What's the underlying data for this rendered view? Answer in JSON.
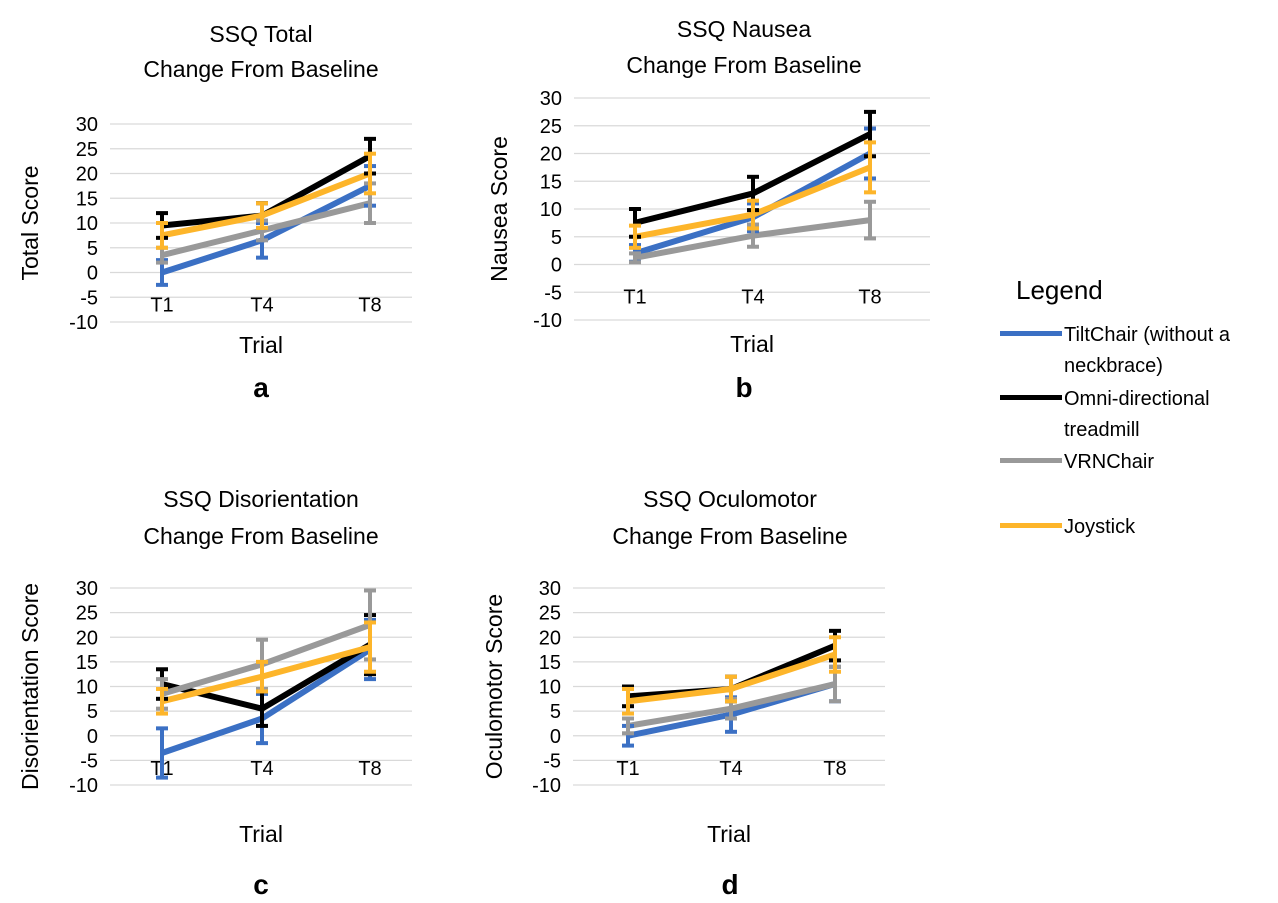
{
  "figure": {
    "series_colors": [
      "#3b70c4",
      "#000000",
      "#999999",
      "#fdb52a"
    ],
    "series_names": [
      "TiltChair (without a neckbrace)",
      "Omni-directional treadmill",
      "VRNChair",
      "Joystick"
    ]
  },
  "legend": {
    "title": "Legend",
    "items": [
      {
        "label": "TiltChair (without a neckbrace)",
        "color": "#3b70c4"
      },
      {
        "label": "Omni-directional treadmill",
        "color": "#000000"
      },
      {
        "label": "VRNChair",
        "color": "#999999"
      },
      {
        "label": "Joystick",
        "color": "#fdb52a"
      }
    ]
  },
  "chart_data": [
    {
      "type": "line",
      "panel": "a",
      "title": "SSQ Total\nChange From Baseline",
      "xlabel": "Trial",
      "ylabel": "Total Score",
      "categories": [
        "T1",
        "T4",
        "T8"
      ],
      "ylim": [
        -10,
        30
      ],
      "yticks": [
        -10,
        -5,
        0,
        5,
        10,
        15,
        20,
        25,
        30
      ],
      "grid": true,
      "series": [
        {
          "name": "TiltChair (without a neckbrace)",
          "values": [
            0,
            6.5,
            17.5
          ],
          "err_lo": [
            2.5,
            3.5,
            4
          ],
          "err_hi": [
            2.5,
            3.5,
            4
          ]
        },
        {
          "name": "Omni-directional treadmill",
          "values": [
            9.5,
            11.5,
            23.5
          ],
          "err_lo": [
            2.5,
            2.5,
            3.5
          ],
          "err_hi": [
            2.5,
            2.5,
            3.5
          ]
        },
        {
          "name": "VRNChair",
          "values": [
            3.5,
            8.5,
            14
          ],
          "err_lo": [
            1.5,
            2,
            4
          ],
          "err_hi": [
            1.5,
            2,
            4
          ]
        },
        {
          "name": "Joystick",
          "values": [
            7.5,
            11.5,
            20
          ],
          "err_lo": [
            2.5,
            2.5,
            4
          ],
          "err_hi": [
            2.5,
            2.5,
            4
          ]
        }
      ]
    },
    {
      "type": "line",
      "panel": "b",
      "title": "SSQ Nausea\nChange From Baseline",
      "xlabel": "Trial",
      "ylabel": "Nausea Score",
      "categories": [
        "T1",
        "T4",
        "T8"
      ],
      "ylim": [
        -10,
        30
      ],
      "yticks": [
        -10,
        -5,
        0,
        5,
        10,
        15,
        20,
        25,
        30
      ],
      "grid": true,
      "series": [
        {
          "name": "TiltChair (without a neckbrace)",
          "values": [
            2,
            8.5,
            20
          ],
          "err_lo": [
            1.5,
            2.5,
            4.5
          ],
          "err_hi": [
            1.5,
            2.5,
            4.5
          ]
        },
        {
          "name": "Omni-directional treadmill",
          "values": [
            7.5,
            12.8,
            23.5
          ],
          "err_lo": [
            2.5,
            3,
            4
          ],
          "err_hi": [
            2.5,
            3,
            4
          ]
        },
        {
          "name": "VRNChair",
          "values": [
            1.2,
            5.2,
            8
          ],
          "err_lo": [
            0.8,
            2,
            3.3
          ],
          "err_hi": [
            0.8,
            2,
            3.3
          ]
        },
        {
          "name": "Joystick",
          "values": [
            5,
            9,
            17.5
          ],
          "err_lo": [
            2,
            2.5,
            4.5
          ],
          "err_hi": [
            2,
            2.5,
            4.5
          ]
        }
      ]
    },
    {
      "type": "line",
      "panel": "c",
      "title": "SSQ Disorientation\nChange From Baseline",
      "xlabel": "Trial",
      "ylabel": "Disorientation Score",
      "categories": [
        "T1",
        "T4",
        "T8"
      ],
      "ylim": [
        -10,
        30
      ],
      "yticks": [
        -10,
        -5,
        0,
        5,
        10,
        15,
        20,
        25,
        30
      ],
      "grid": true,
      "series": [
        {
          "name": "TiltChair (without a neckbrace)",
          "values": [
            -3.5,
            3.5,
            17.5
          ],
          "err_lo": [
            5,
            5,
            6
          ],
          "err_hi": [
            5,
            5,
            6
          ]
        },
        {
          "name": "Omni-directional treadmill",
          "values": [
            10.5,
            5.5,
            18.5
          ],
          "err_lo": [
            3,
            3.5,
            6
          ],
          "err_hi": [
            3,
            3.5,
            6
          ]
        },
        {
          "name": "VRNChair",
          "values": [
            8.5,
            14.5,
            22.5
          ],
          "err_lo": [
            3,
            5,
            7
          ],
          "err_hi": [
            3,
            5,
            7
          ]
        },
        {
          "name": "Joystick",
          "values": [
            7,
            12,
            18
          ],
          "err_lo": [
            2.5,
            3,
            5
          ],
          "err_hi": [
            2.5,
            3,
            5
          ]
        }
      ]
    },
    {
      "type": "line",
      "panel": "d",
      "title": "SSQ Oculomotor\nChange From Baseline",
      "xlabel": "Trial",
      "ylabel": "Oculomotor Score",
      "categories": [
        "T1",
        "T4",
        "T8"
      ],
      "ylim": [
        -10,
        30
      ],
      "yticks": [
        -10,
        -5,
        0,
        5,
        10,
        15,
        20,
        25,
        30
      ],
      "grid": true,
      "series": [
        {
          "name": "TiltChair (without a neckbrace)",
          "values": [
            0,
            4.3,
            10.5
          ],
          "err_lo": [
            2,
            3.5,
            3.5
          ],
          "err_hi": [
            2,
            3.5,
            3.5
          ]
        },
        {
          "name": "Omni-directional treadmill",
          "values": [
            8,
            9.5,
            18.3
          ],
          "err_lo": [
            2,
            2.5,
            3
          ],
          "err_hi": [
            2,
            2.5,
            3
          ]
        },
        {
          "name": "VRNChair",
          "values": [
            2,
            5.5,
            10.5
          ],
          "err_lo": [
            1.5,
            2,
            3.5
          ],
          "err_hi": [
            1.5,
            2,
            3.5
          ]
        },
        {
          "name": "Joystick",
          "values": [
            7,
            9.5,
            16.5
          ],
          "err_lo": [
            2.5,
            2.5,
            3.5
          ],
          "err_hi": [
            2.5,
            2.5,
            3.5
          ]
        }
      ]
    }
  ]
}
